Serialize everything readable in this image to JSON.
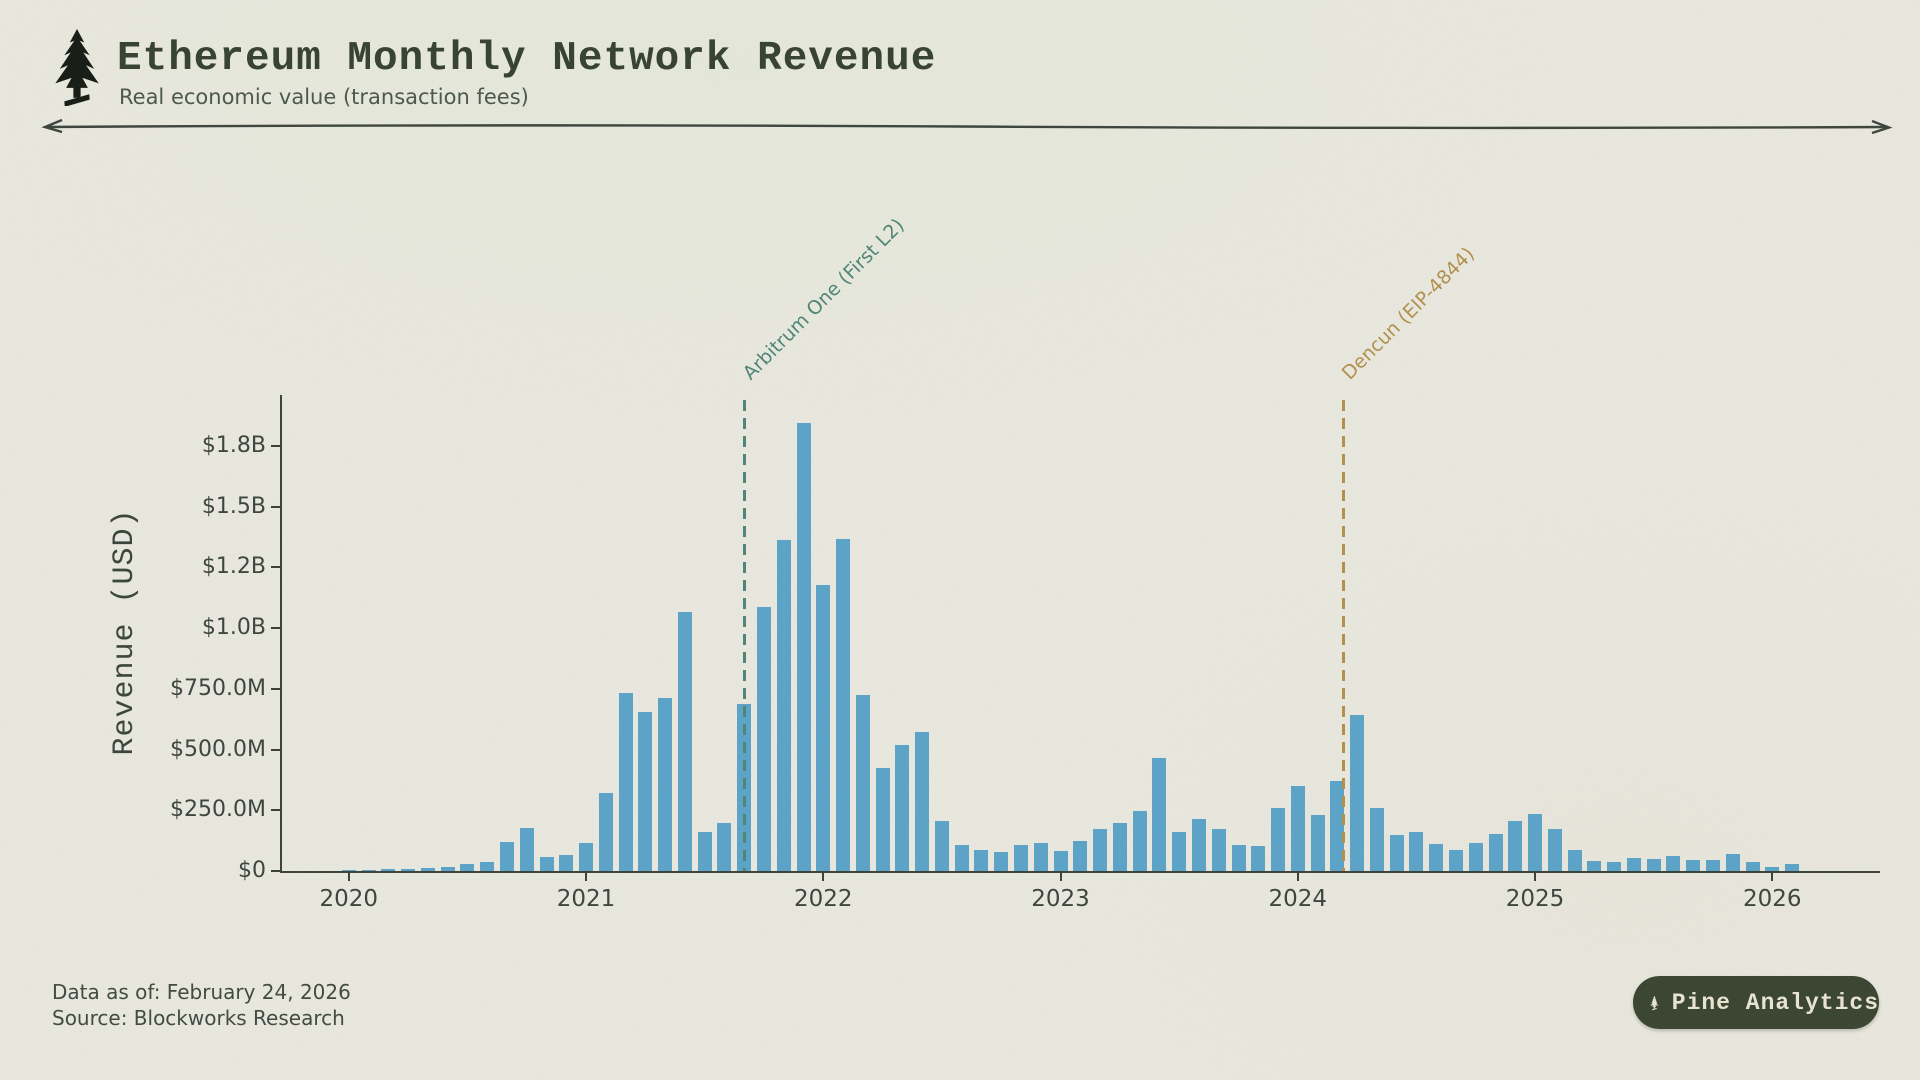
{
  "header": {
    "title": "Ethereum Monthly Network Revenue",
    "subtitle": "Real economic value (transaction fees)"
  },
  "chart_data": {
    "type": "bar",
    "title": "Ethereum Monthly Network Revenue",
    "subtitle": "Real economic value (transaction fees)",
    "xlabel": "",
    "ylabel": "Revenue (USD)",
    "unit": "USD millions",
    "grid": false,
    "legend": null,
    "bar_color": "#5ba4c9",
    "ylim_musd": [
      0,
      1970
    ],
    "y_ticks": [
      "$0",
      "$250.0M",
      "$500.0M",
      "$750.0M",
      "$1.0B",
      "$1.2B",
      "$1.5B",
      "$1.8B"
    ],
    "y_tick_values_musd": [
      0,
      250,
      500,
      750,
      1000,
      1250,
      1500,
      1750
    ],
    "x_ticks": [
      "2020",
      "2021",
      "2022",
      "2023",
      "2024",
      "2025",
      "2026"
    ],
    "months": [
      "2020-01",
      "2020-02",
      "2020-03",
      "2020-04",
      "2020-05",
      "2020-06",
      "2020-07",
      "2020-08",
      "2020-09",
      "2020-10",
      "2020-11",
      "2020-12",
      "2021-01",
      "2021-02",
      "2021-03",
      "2021-04",
      "2021-05",
      "2021-06",
      "2021-07",
      "2021-08",
      "2021-09",
      "2021-10",
      "2021-11",
      "2021-12",
      "2022-01",
      "2022-02",
      "2022-03",
      "2022-04",
      "2022-05",
      "2022-06",
      "2022-07",
      "2022-08",
      "2022-09",
      "2022-10",
      "2022-11",
      "2022-12",
      "2023-01",
      "2023-02",
      "2023-03",
      "2023-04",
      "2023-05",
      "2023-06",
      "2023-07",
      "2023-08",
      "2023-09",
      "2023-10",
      "2023-11",
      "2023-12",
      "2024-01",
      "2024-02",
      "2024-03",
      "2024-04",
      "2024-05",
      "2024-06",
      "2024-07",
      "2024-08",
      "2024-09",
      "2024-10",
      "2024-11",
      "2024-12",
      "2025-01",
      "2025-02",
      "2025-03",
      "2025-04",
      "2025-05",
      "2025-06",
      "2025-07",
      "2025-08",
      "2025-09",
      "2025-10",
      "2025-11",
      "2025-12",
      "2026-01",
      "2026-02"
    ],
    "values_musd": [
      4,
      6,
      10,
      8,
      12,
      16,
      27,
      38,
      118,
      176,
      58,
      66,
      114,
      321,
      732,
      654,
      712,
      1066,
      160,
      198,
      687,
      1086,
      1362,
      1844,
      1177,
      1366,
      724,
      424,
      518,
      572,
      206,
      107,
      86,
      78,
      107,
      115,
      82,
      123,
      173,
      198,
      247,
      465,
      160,
      214,
      173,
      107,
      103,
      259,
      350,
      230,
      370,
      642,
      259,
      148,
      160,
      111,
      86,
      115,
      152,
      206,
      234,
      173,
      86,
      41,
      37,
      53,
      49,
      62,
      45,
      45,
      70,
      37,
      18,
      30
    ],
    "annotations": [
      {
        "label": "Arbitrum One (First L2)",
        "month": "2021-09",
        "month_frac": 0.0,
        "color": "#4e8677"
      },
      {
        "label": "Dencun (EIP-4844)",
        "month": "2024-03",
        "month_frac": 0.3,
        "color": "#b3904c"
      }
    ]
  },
  "footer": {
    "data_as_of": "Data as of: February 24, 2026",
    "source": "Source: Blockworks Research"
  },
  "badge": {
    "label": "Pine Analytics"
  }
}
